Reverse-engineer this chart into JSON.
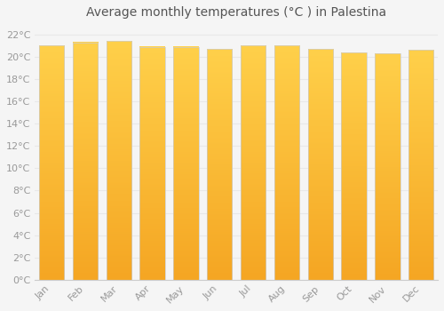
{
  "title": "Average monthly temperatures (°C ) in Palestina",
  "months": [
    "Jan",
    "Feb",
    "Mar",
    "Apr",
    "May",
    "Jun",
    "Jul",
    "Aug",
    "Sep",
    "Oct",
    "Nov",
    "Dec"
  ],
  "values": [
    21.0,
    21.3,
    21.4,
    20.9,
    20.9,
    20.7,
    21.0,
    21.0,
    20.7,
    20.4,
    20.3,
    20.6
  ],
  "bar_color_light": "#FFD04A",
  "bar_color_dark": "#F5A623",
  "background_color": "#f5f5f5",
  "plot_bg_color": "#f5f5f5",
  "grid_color": "#e8e8e8",
  "ytick_labels": [
    "0°C",
    "2°C",
    "4°C",
    "6°C",
    "8°C",
    "10°C",
    "12°C",
    "14°C",
    "16°C",
    "18°C",
    "20°C",
    "22°C"
  ],
  "ytick_values": [
    0,
    2,
    4,
    6,
    8,
    10,
    12,
    14,
    16,
    18,
    20,
    22
  ],
  "ylim": [
    0,
    23
  ],
  "title_fontsize": 10,
  "tick_fontsize": 8,
  "tick_color": "#999999",
  "title_color": "#555555",
  "font_family": "DejaVu Sans",
  "bar_width": 0.75,
  "bar_edge_color": "#cccccc",
  "bar_edge_width": 0.5
}
